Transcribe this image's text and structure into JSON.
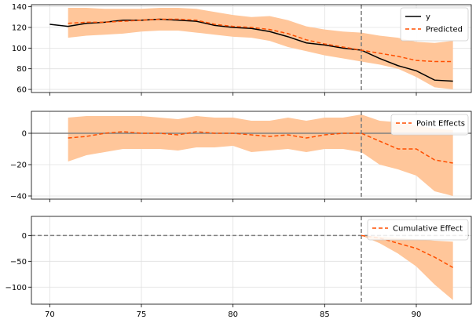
{
  "chart_data": [
    {
      "type": "line",
      "title": "",
      "xlabel": "",
      "ylabel": "",
      "xlim": [
        69,
        93
      ],
      "ylim": [
        57,
        142
      ],
      "grid": true,
      "yticks": [
        60,
        80,
        100,
        120,
        140
      ],
      "legend_position": "top-right",
      "intervention_x": 87,
      "series": [
        {
          "name": "y",
          "style": "solid",
          "color": "#000000",
          "x": [
            70,
            71,
            72,
            73,
            74,
            75,
            76,
            77,
            78,
            79,
            80,
            81,
            82,
            83,
            84,
            85,
            86,
            87,
            88,
            89,
            90,
            91,
            92
          ],
          "values": [
            123,
            121,
            124,
            125,
            127,
            127,
            128,
            127,
            126,
            122,
            120,
            119,
            116,
            111,
            105,
            103,
            100,
            98,
            90,
            83,
            78,
            69,
            68
          ]
        },
        {
          "name": "Predicted",
          "style": "dashed",
          "color": "#ff4f00",
          "x": [
            71,
            72,
            73,
            74,
            75,
            76,
            77,
            78,
            79,
            80,
            81,
            82,
            83,
            84,
            85,
            86,
            87,
            88,
            89,
            90,
            91,
            92
          ],
          "values": [
            124,
            125,
            125,
            126,
            127,
            128,
            128,
            127,
            123,
            121,
            120,
            118,
            114,
            108,
            104,
            101,
            98,
            95,
            92,
            88,
            87,
            87
          ]
        }
      ],
      "band": {
        "x": [
          71,
          72,
          73,
          74,
          75,
          76,
          77,
          78,
          79,
          80,
          81,
          82,
          83,
          84,
          85,
          86,
          87,
          88,
          89,
          90,
          91,
          92
        ],
        "lower": [
          110,
          112,
          113,
          114,
          116,
          117,
          117,
          115,
          113,
          111,
          110,
          107,
          101,
          97,
          93,
          90,
          87,
          84,
          80,
          72,
          62,
          60
        ],
        "upper": [
          139,
          139,
          138,
          138,
          138,
          139,
          139,
          138,
          135,
          132,
          130,
          131,
          127,
          121,
          118,
          116,
          115,
          112,
          110,
          106,
          105,
          107
        ],
        "color": "#ffc69a"
      }
    },
    {
      "type": "line",
      "title": "",
      "xlabel": "",
      "ylabel": "",
      "xlim": [
        69,
        93
      ],
      "ylim": [
        -42,
        14
      ],
      "grid": true,
      "yticks": [
        -40,
        -20,
        0
      ],
      "legend_position": "top-right",
      "intervention_x": 87,
      "baseline": 0,
      "series": [
        {
          "name": "Point Effects",
          "style": "dashed",
          "color": "#ff4f00",
          "x": [
            71,
            72,
            73,
            74,
            75,
            76,
            77,
            78,
            79,
            80,
            81,
            82,
            83,
            84,
            85,
            86,
            87,
            88,
            89,
            90,
            91,
            92
          ],
          "values": [
            -3,
            -2,
            0,
            1,
            0,
            0,
            -1,
            1,
            0,
            0,
            -1,
            -2,
            -1,
            -3,
            -1,
            0,
            0,
            -5,
            -10,
            -10,
            -17,
            -19
          ]
        }
      ],
      "band": {
        "x": [
          71,
          72,
          73,
          74,
          75,
          76,
          77,
          78,
          79,
          80,
          81,
          82,
          83,
          84,
          85,
          86,
          87,
          88,
          89,
          90,
          91,
          92
        ],
        "lower": [
          -18,
          -14,
          -12,
          -10,
          -10,
          -10,
          -11,
          -9,
          -9,
          -8,
          -12,
          -11,
          -10,
          -12,
          -10,
          -10,
          -12,
          -20,
          -23,
          -27,
          -37,
          -40
        ],
        "upper": [
          10,
          11,
          11,
          11,
          11,
          10,
          9,
          11,
          10,
          10,
          8,
          8,
          10,
          8,
          10,
          10,
          12,
          8,
          7,
          5,
          3,
          2
        ],
        "color": "#ffc69a"
      }
    },
    {
      "type": "line",
      "title": "",
      "xlabel": "",
      "ylabel": "",
      "xlim": [
        69,
        93
      ],
      "ylim": [
        -133,
        37
      ],
      "grid": true,
      "xticks": [
        70,
        75,
        80,
        85,
        90
      ],
      "yticks": [
        -100,
        -50,
        0
      ],
      "legend_position": "top-right",
      "intervention_x": 87,
      "baseline": 0,
      "series": [
        {
          "name": "Cumulative Effect",
          "style": "dashed",
          "color": "#ff4f00",
          "x": [
            87,
            88,
            89,
            90,
            91,
            92
          ],
          "values": [
            0,
            -5,
            -15,
            -25,
            -42,
            -62
          ]
        }
      ],
      "band": {
        "x": [
          87,
          88,
          89,
          90,
          91,
          92
        ],
        "lower": [
          0,
          -15,
          -35,
          -60,
          -95,
          -125
        ],
        "upper": [
          0,
          -2,
          -5,
          -7,
          -10,
          -12
        ],
        "color": "#ffc69a"
      }
    }
  ]
}
